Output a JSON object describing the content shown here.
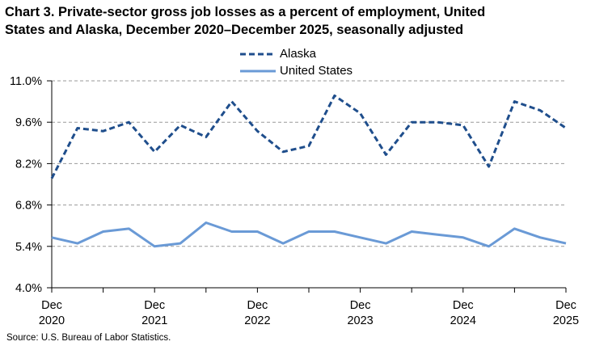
{
  "chart_data": {
    "type": "line",
    "title_lines": [
      "Chart 3. Private-sector gross job losses as a percent of employment, United",
      "States and Alaska, December 2020–December 2025, seasonally adjusted"
    ],
    "ylim": [
      4.0,
      11.0
    ],
    "yticks": [
      "4.0%",
      "5.4%",
      "6.8%",
      "8.2%",
      "9.6%",
      "11.0%"
    ],
    "ytick_values": [
      4.0,
      5.4,
      6.8,
      8.2,
      9.6,
      11.0
    ],
    "grid": "horizontal dashed",
    "legend_placement": "top-center",
    "x": [
      "Dec 2020",
      "Mar 2021",
      "Jun 2021",
      "Sep 2021",
      "Dec 2021",
      "Mar 2022",
      "Jun 2022",
      "Sep 2022",
      "Dec 2022",
      "Mar 2023",
      "Jun 2023",
      "Sep 2023",
      "Dec 2023",
      "Mar 2024",
      "Jun 2024",
      "Sep 2024",
      "Dec 2024",
      "Mar 2025",
      "Jun 2025",
      "Sep 2025",
      "Dec 2025"
    ],
    "xtick_labels": [
      {
        "index": 0,
        "month": "Dec",
        "year": "2020"
      },
      {
        "index": 4,
        "month": "Dec",
        "year": "2021"
      },
      {
        "index": 8,
        "month": "Dec",
        "year": "2022"
      },
      {
        "index": 12,
        "month": "Dec",
        "year": "2023"
      },
      {
        "index": 16,
        "month": "Dec",
        "year": "2024"
      },
      {
        "index": 20,
        "month": "Dec",
        "year": "2025"
      }
    ],
    "series": [
      {
        "name": "Alaska",
        "color": "#1f4e8c",
        "style": "dashed",
        "values": [
          7.7,
          9.4,
          9.3,
          9.6,
          8.6,
          9.5,
          9.1,
          10.3,
          9.3,
          8.6,
          8.8,
          10.5,
          9.9,
          8.5,
          9.6,
          9.6,
          9.5,
          8.1,
          10.3,
          10.0,
          9.4
        ]
      },
      {
        "name": "United States",
        "color": "#6a9ad6",
        "style": "solid",
        "values": [
          5.7,
          5.5,
          5.9,
          6.0,
          5.4,
          5.5,
          6.2,
          5.9,
          5.9,
          5.5,
          5.9,
          5.9,
          5.7,
          5.5,
          5.9,
          5.8,
          5.7,
          5.4,
          6.0,
          5.7,
          5.5
        ]
      }
    ],
    "source": "Source: U.S. Bureau of Labor Statistics."
  }
}
